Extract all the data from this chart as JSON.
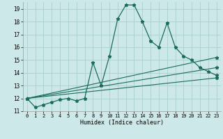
{
  "xlabel": "Humidex (Indice chaleur)",
  "xlim": [
    -0.5,
    23.5
  ],
  "ylim": [
    11,
    19.5
  ],
  "yticks": [
    11,
    12,
    13,
    14,
    15,
    16,
    17,
    18,
    19
  ],
  "xticks": [
    0,
    1,
    2,
    3,
    4,
    5,
    6,
    7,
    8,
    9,
    10,
    11,
    12,
    13,
    14,
    15,
    16,
    17,
    18,
    19,
    20,
    21,
    22,
    23
  ],
  "bg_color": "#cce8e8",
  "grid_color": "#aacfcf",
  "line_color": "#1a6b5a",
  "main_line": {
    "x": [
      0,
      1,
      2,
      3,
      4,
      5,
      6,
      7,
      8,
      9,
      10,
      11,
      12,
      13,
      14,
      15,
      16,
      17,
      18,
      19,
      20,
      21,
      22,
      23
    ],
    "y": [
      12.0,
      11.3,
      11.5,
      11.7,
      11.9,
      12.0,
      11.8,
      12.0,
      14.8,
      13.0,
      15.3,
      18.2,
      19.3,
      19.3,
      18.0,
      16.5,
      16.0,
      17.9,
      16.0,
      15.3,
      15.0,
      14.4,
      14.1,
      13.8
    ]
  },
  "straight_lines": [
    {
      "x": [
        0,
        23
      ],
      "y": [
        12.0,
        15.2
      ]
    },
    {
      "x": [
        0,
        23
      ],
      "y": [
        12.0,
        14.4
      ]
    },
    {
      "x": [
        0,
        23
      ],
      "y": [
        12.0,
        13.6
      ]
    }
  ]
}
